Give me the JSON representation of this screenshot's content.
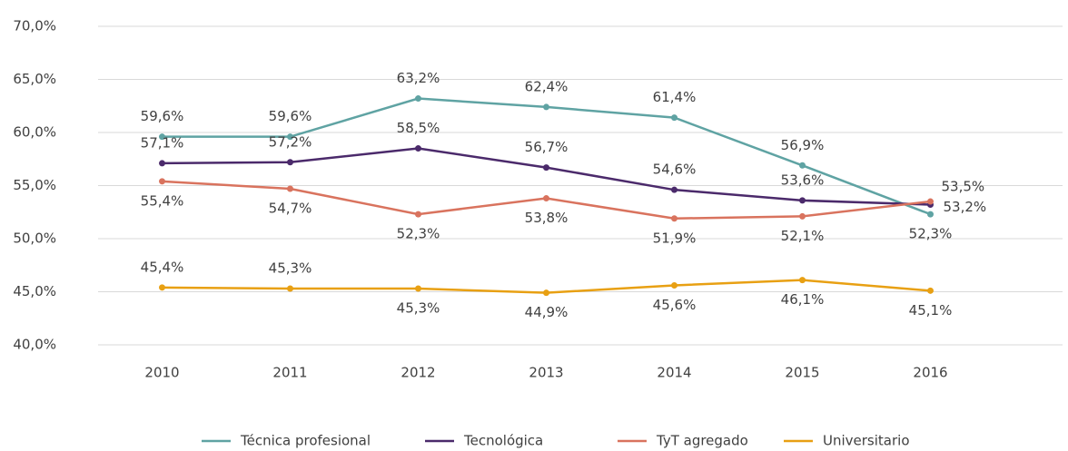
{
  "chart_data": {
    "type": "line",
    "categories": [
      "2010",
      "2011",
      "2012",
      "2013",
      "2014",
      "2015",
      "2016"
    ],
    "series": [
      {
        "name": "Técnica profesional",
        "color": "#5fa3a3",
        "values": [
          59.6,
          59.6,
          63.2,
          62.4,
          61.4,
          56.9,
          52.3
        ],
        "value_labels": [
          "59,6%",
          "59,6%",
          "63,2%",
          "62,4%",
          "61,4%",
          "56,9%",
          "52,3%"
        ]
      },
      {
        "name": "Tecnológica",
        "color": "#4b2a6b",
        "values": [
          57.1,
          57.2,
          58.5,
          56.7,
          54.6,
          53.6,
          53.2
        ],
        "value_labels": [
          "57,1%",
          "57,2%",
          "58,5%",
          "56,7%",
          "54,6%",
          "53,6%",
          "53,2%"
        ]
      },
      {
        "name": "TyT agregado",
        "color": "#d9735e",
        "values": [
          55.4,
          54.7,
          52.3,
          53.8,
          51.9,
          52.1,
          53.5
        ],
        "value_labels": [
          "55,4%",
          "54,7%",
          "52,3%",
          "53,8%",
          "51,9%",
          "52,1%",
          "53,5%"
        ]
      },
      {
        "name": "Universitario",
        "color": "#e8a013",
        "values": [
          45.4,
          45.3,
          45.3,
          44.9,
          45.6,
          46.1,
          45.1
        ],
        "value_labels": [
          "45,4%",
          "45,3%",
          "45,3%",
          "44,9%",
          "45,6%",
          "46,1%",
          "45,1%"
        ]
      }
    ],
    "ylim": [
      40,
      70
    ],
    "yticks": [
      {
        "value": 40,
        "label": "40,0%"
      },
      {
        "value": 45,
        "label": "45,0%"
      },
      {
        "value": 50,
        "label": "50,0%"
      },
      {
        "value": 55,
        "label": "55,0%"
      },
      {
        "value": 60,
        "label": "60,0%"
      },
      {
        "value": 65,
        "label": "65,0%"
      },
      {
        "value": 70,
        "label": "70,0%"
      }
    ],
    "grid": true,
    "legend": "bottom"
  }
}
